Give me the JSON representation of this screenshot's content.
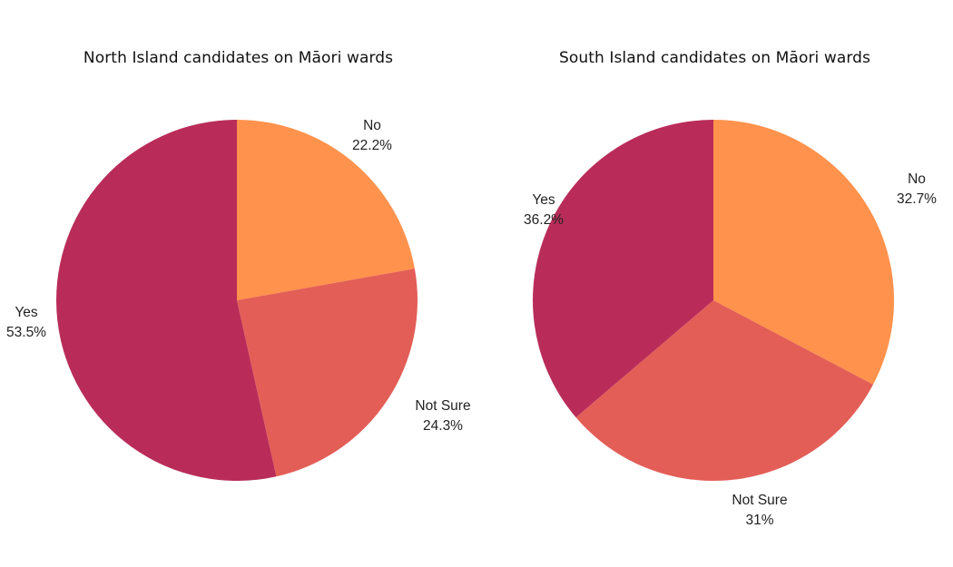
{
  "chart_data": [
    {
      "type": "pie",
      "title": "North Island candidates on Māori wards",
      "slices": [
        {
          "name": "No",
          "value": 22.2,
          "label": "22.2%",
          "color": "#ff924c"
        },
        {
          "name": "Not Sure",
          "value": 24.3,
          "label": "24.3%",
          "color": "#e35e57"
        },
        {
          "name": "Yes",
          "value": 53.5,
          "label": "53.5%",
          "color": "#b92c5a"
        }
      ]
    },
    {
      "type": "pie",
      "title": "South Island candidates on Māori wards",
      "slices": [
        {
          "name": "No",
          "value": 32.7,
          "label": "32.7%",
          "color": "#ff924c"
        },
        {
          "name": "Not Sure",
          "value": 31,
          "label": "31%",
          "color": "#e35e57"
        },
        {
          "name": "Yes",
          "value": 36.2,
          "label": "36.2%",
          "color": "#b92c5a"
        }
      ]
    }
  ]
}
